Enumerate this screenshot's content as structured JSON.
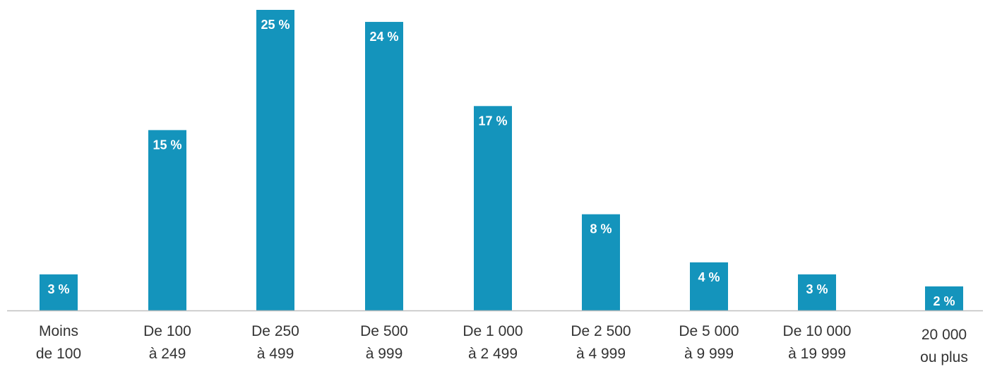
{
  "chart_data": {
    "type": "bar",
    "categories": [
      [
        "Moins",
        "de 100"
      ],
      [
        "De 100",
        "à 249"
      ],
      [
        "De 250",
        "à 499"
      ],
      [
        "De 500",
        "à 999"
      ],
      [
        "De 1 000",
        "à 2 499"
      ],
      [
        "De 2 500",
        "à 4 999"
      ],
      [
        "De 5 000",
        "à 9 999"
      ],
      [
        "De 10 000",
        "à 19 999"
      ],
      [
        "20 000",
        "ou plus"
      ]
    ],
    "values": [
      3,
      15,
      25,
      24,
      17,
      8,
      4,
      3,
      2
    ],
    "value_labels": [
      "3 %",
      "15 %",
      "25 %",
      "24 %",
      "17 %",
      "8 %",
      "4 %",
      "3 %",
      "2 %"
    ],
    "title": "",
    "xlabel": "",
    "ylabel": "",
    "ylim": [
      0,
      25
    ],
    "grid": false,
    "legend": "none",
    "bar_color": "#1494bc",
    "axis_color": "#bfbfbf"
  }
}
